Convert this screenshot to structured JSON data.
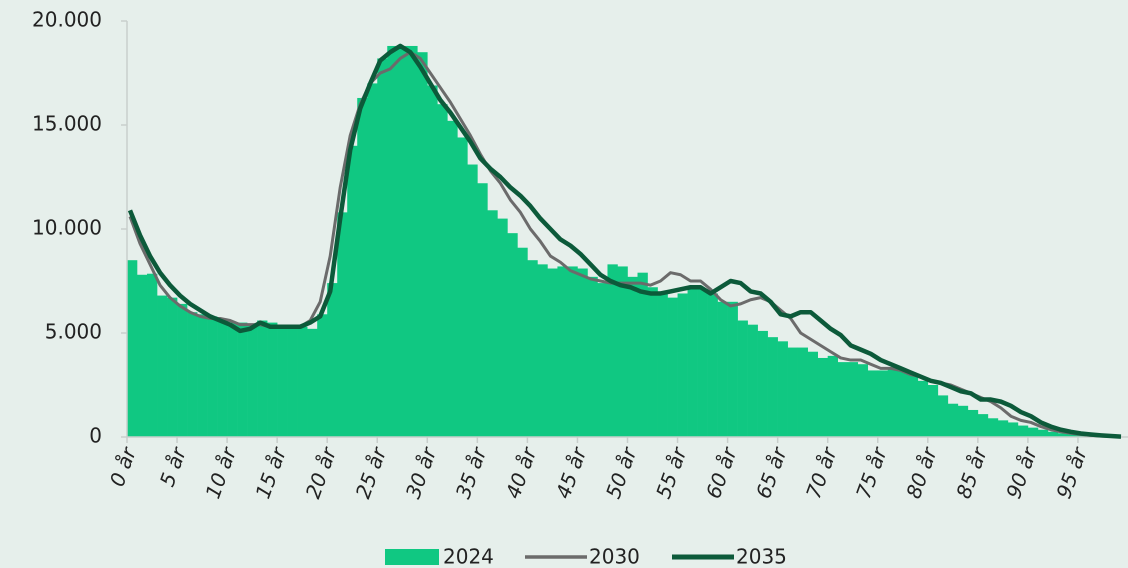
{
  "chart_data": {
    "type": "bar",
    "categories": [
      "0 år",
      null,
      null,
      null,
      null,
      "5 år",
      null,
      null,
      null,
      null,
      "10 år",
      null,
      null,
      null,
      null,
      "15 år",
      null,
      null,
      null,
      null,
      "20 år",
      null,
      null,
      null,
      null,
      "25 år",
      null,
      null,
      null,
      null,
      "30 år",
      null,
      null,
      null,
      null,
      "35 år",
      null,
      null,
      null,
      null,
      "40 år",
      null,
      null,
      null,
      null,
      "45 år",
      null,
      null,
      null,
      null,
      "50 år",
      null,
      null,
      null,
      null,
      "55 år",
      null,
      null,
      null,
      null,
      "60 år",
      null,
      null,
      null,
      null,
      "65 år",
      null,
      null,
      null,
      null,
      "70 år",
      null,
      null,
      null,
      null,
      "75 år",
      null,
      null,
      null,
      null,
      "80 år",
      null,
      null,
      null,
      null,
      "85 år",
      null,
      null,
      null,
      null,
      "90 år",
      null,
      null,
      null,
      null,
      "95 år",
      null,
      null,
      null,
      null
    ],
    "series": [
      {
        "name": "2024",
        "type": "bar",
        "color": "#10c882",
        "values": [
          8500,
          7800,
          7850,
          6800,
          6700,
          6400,
          6000,
          5900,
          5800,
          5700,
          5500,
          5500,
          5400,
          5600,
          5500,
          5300,
          5300,
          5300,
          5200,
          5900,
          7400,
          10800,
          14000,
          16300,
          17000,
          18200,
          18800,
          18800,
          18800,
          18500,
          16900,
          16000,
          15200,
          14400,
          13100,
          12200,
          10900,
          10500,
          9800,
          9100,
          8500,
          8300,
          8100,
          8200,
          8200,
          8100,
          7700,
          7400,
          8300,
          8200,
          7700,
          7900,
          7200,
          7000,
          6700,
          6900,
          7100,
          7100,
          6900,
          6500,
          6500,
          5600,
          5400,
          5100,
          4800,
          4600,
          4300,
          4300,
          4100,
          3800,
          3900,
          3600,
          3600,
          3500,
          3200,
          3200,
          3300,
          3200,
          3000,
          2700,
          2500,
          2000,
          1600,
          1500,
          1300,
          1100,
          900,
          800,
          700,
          550,
          450,
          350,
          250,
          180,
          130,
          100,
          70,
          50,
          30,
          20
        ]
      },
      {
        "name": "2030",
        "type": "line",
        "color": "#6b6b6b",
        "values": [
          10600,
          9300,
          8300,
          7300,
          6700,
          6300,
          6000,
          5800,
          5700,
          5700,
          5600,
          5400,
          5400,
          5400,
          5300,
          5300,
          5300,
          5300,
          5600,
          6500,
          8700,
          12000,
          14500,
          16000,
          17000,
          17500,
          17700,
          18200,
          18500,
          18200,
          17500,
          16800,
          16100,
          15300,
          14500,
          13600,
          12800,
          12200,
          11400,
          10800,
          10000,
          9400,
          8700,
          8400,
          8000,
          7800,
          7600,
          7500,
          7400,
          7400,
          7400,
          7400,
          7300,
          7500,
          7900,
          7800,
          7500,
          7500,
          7100,
          6600,
          6300,
          6400,
          6600,
          6700,
          6500,
          6100,
          5700,
          5000,
          4700,
          4400,
          4100,
          3800,
          3700,
          3700,
          3500,
          3300,
          3300,
          3200,
          3000,
          2900,
          2700,
          2600,
          2500,
          2300,
          2100,
          1900,
          1700,
          1400,
          1000,
          800,
          700,
          500,
          350,
          250,
          180,
          120,
          80,
          50,
          30,
          10
        ]
      },
      {
        "name": "2035",
        "type": "line",
        "color": "#0c5a3a",
        "values": [
          10900,
          9700,
          8700,
          7900,
          7300,
          6800,
          6400,
          6100,
          5800,
          5600,
          5400,
          5100,
          5200,
          5500,
          5300,
          5300,
          5300,
          5300,
          5500,
          5800,
          7000,
          10500,
          13800,
          15800,
          17000,
          18100,
          18500,
          18800,
          18500,
          17800,
          17000,
          16200,
          15600,
          14900,
          14200,
          13400,
          12900,
          12500,
          12000,
          11600,
          11100,
          10500,
          10000,
          9500,
          9200,
          8800,
          8300,
          7800,
          7500,
          7300,
          7200,
          7000,
          6900,
          6900,
          7000,
          7100,
          7200,
          7200,
          6900,
          7200,
          7500,
          7400,
          7000,
          6900,
          6500,
          5900,
          5800,
          6000,
          6000,
          5600,
          5200,
          4900,
          4400,
          4200,
          4000,
          3700,
          3500,
          3300,
          3100,
          2900,
          2700,
          2600,
          2400,
          2200,
          2100,
          1800,
          1800,
          1700,
          1500,
          1200,
          1000,
          700,
          500,
          350,
          250,
          170,
          120,
          80,
          50,
          20
        ]
      }
    ],
    "ylim": [
      0,
      20000
    ],
    "yticks": [
      0,
      {
        "value": 5000,
        "label": "5.000"
      },
      {
        "value": 10000,
        "label": "10.000"
      },
      {
        "value": 15000,
        "label": "15.000"
      },
      {
        "value": 20000,
        "label": "20.000"
      }
    ],
    "grid": false,
    "legend": "bottom"
  }
}
